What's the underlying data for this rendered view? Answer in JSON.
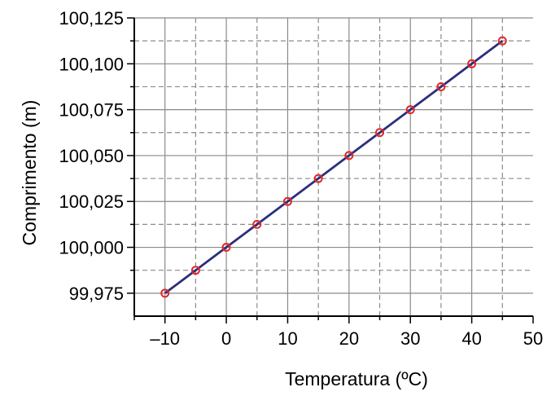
{
  "chart_data": {
    "type": "line",
    "title": "",
    "xlabel": "Temperatura (ºC)",
    "ylabel": "Comprimento (m)",
    "xlim": [
      -15,
      50
    ],
    "ylim": [
      99.9625,
      100.125
    ],
    "x_ticks": [
      -10,
      0,
      10,
      20,
      30,
      40,
      50
    ],
    "x_tick_labels": [
      "–10",
      "0",
      "10",
      "20",
      "30",
      "40",
      "50"
    ],
    "y_ticks": [
      99.975,
      100.0,
      100.025,
      100.05,
      100.075,
      100.1,
      100.125
    ],
    "y_tick_labels": [
      "99,975",
      "100,000",
      "100,025",
      "100,050",
      "100,075",
      "100,100",
      "100,125"
    ],
    "grid": true,
    "series": [
      {
        "x": [
          -10,
          -5,
          0,
          5,
          10,
          15,
          20,
          25,
          30,
          35,
          40,
          45
        ],
        "y": [
          99.975,
          99.9875,
          100.0,
          100.0125,
          100.025,
          100.0375,
          100.05,
          100.0625,
          100.075,
          100.0875,
          100.1,
          100.1125
        ],
        "line_color": "#2b2f7c",
        "marker_color": "#e02828"
      }
    ]
  }
}
